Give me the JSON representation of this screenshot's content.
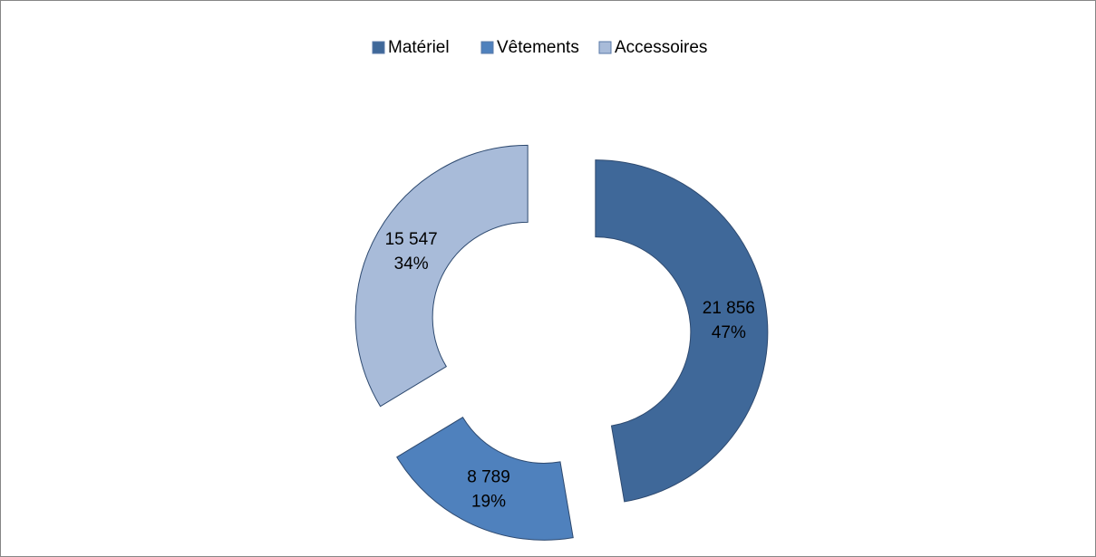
{
  "chart_data": {
    "type": "donut",
    "categories": [
      "Matériel",
      "Vêtements",
      "Accessoires"
    ],
    "values": [
      21856,
      8789,
      15547
    ],
    "value_labels": [
      "21 856",
      "8 789",
      "15 547"
    ],
    "percent_labels": [
      "47%",
      "19%",
      "34%"
    ],
    "colors": [
      "#3f6899",
      "#4f81bd",
      "#a8bbd9"
    ],
    "legend": "top"
  }
}
